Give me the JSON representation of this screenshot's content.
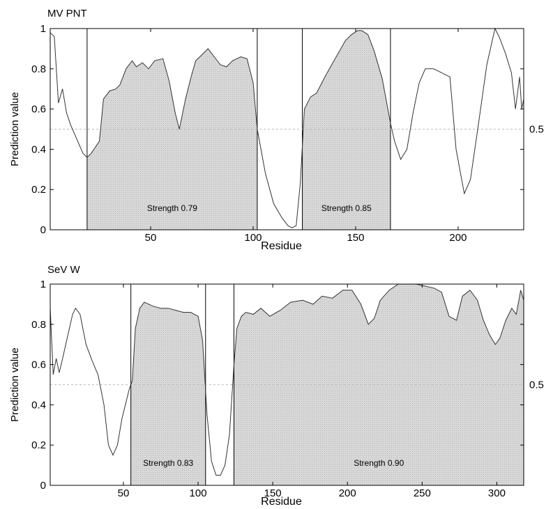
{
  "chart_data": [
    {
      "type": "line",
      "title": "MV PNT",
      "xlabel": "Residue",
      "ylabel": "Prediction value",
      "xlim": [
        1,
        232
      ],
      "ylim": [
        0,
        1
      ],
      "xticks": [
        50,
        100,
        150,
        200
      ],
      "yticks": [
        0,
        0.2,
        0.4,
        0.6,
        0.8,
        1
      ],
      "ytick_labels": [
        "0",
        "0.2",
        "0.4",
        "0.6",
        "0.8",
        "1"
      ],
      "threshold": {
        "value": 0.5,
        "label": "0.5"
      },
      "grid": false,
      "series": [
        {
          "x": [
            1,
            3,
            5,
            7,
            9,
            11,
            14,
            17,
            19,
            21,
            25,
            27,
            30,
            33,
            35,
            38,
            41,
            43,
            46,
            49,
            52,
            56,
            59,
            62,
            64,
            67,
            70,
            72,
            75,
            78,
            81,
            84,
            87,
            90,
            94,
            97,
            100,
            102,
            106,
            110,
            114,
            117,
            119,
            121,
            123,
            125,
            128,
            131,
            135,
            140,
            145,
            148,
            151,
            153,
            156,
            159,
            163,
            167,
            169,
            172,
            175,
            178,
            181,
            184,
            188,
            192,
            196,
            199,
            203,
            206,
            210,
            214,
            218,
            220,
            223,
            226,
            228,
            230,
            231,
            232
          ],
          "y": [
            0.98,
            0.96,
            0.63,
            0.7,
            0.58,
            0.52,
            0.45,
            0.38,
            0.36,
            0.38,
            0.44,
            0.65,
            0.69,
            0.7,
            0.72,
            0.8,
            0.84,
            0.81,
            0.83,
            0.8,
            0.84,
            0.85,
            0.74,
            0.58,
            0.5,
            0.65,
            0.77,
            0.84,
            0.87,
            0.9,
            0.86,
            0.82,
            0.81,
            0.84,
            0.86,
            0.85,
            0.73,
            0.5,
            0.28,
            0.13,
            0.06,
            0.02,
            0.01,
            0.02,
            0.23,
            0.6,
            0.66,
            0.68,
            0.76,
            0.85,
            0.94,
            0.97,
            0.99,
            0.99,
            0.97,
            0.89,
            0.75,
            0.53,
            0.44,
            0.35,
            0.4,
            0.58,
            0.73,
            0.8,
            0.8,
            0.78,
            0.76,
            0.4,
            0.18,
            0.25,
            0.53,
            0.82,
            1.0,
            0.96,
            0.88,
            0.78,
            0.6,
            0.76,
            0.6,
            0.65
          ]
        }
      ],
      "regions": [
        {
          "start": 19,
          "end": 102,
          "label": "Strength 0.79"
        },
        {
          "start": 124,
          "end": 167,
          "label": "Strength 0.85"
        }
      ]
    },
    {
      "type": "line",
      "title": "SeV W",
      "xlabel": "Residue",
      "ylabel": "Prediction value",
      "xlim": [
        1,
        318
      ],
      "ylim": [
        0,
        1
      ],
      "xticks": [
        50,
        100,
        150,
        200,
        250,
        300
      ],
      "yticks": [
        0,
        0.2,
        0.4,
        0.6,
        0.8,
        1
      ],
      "ytick_labels": [
        "0",
        "0.2",
        "0.4",
        "0.6",
        "0.8",
        "1"
      ],
      "threshold": {
        "value": 0.5,
        "label": "0.5"
      },
      "grid": false,
      "series": [
        {
          "x": [
            1,
            3,
            5,
            7,
            9,
            12,
            16,
            18,
            21,
            25,
            29,
            33,
            37,
            40,
            43,
            46,
            49,
            52,
            54,
            56,
            58,
            61,
            64,
            67,
            70,
            75,
            80,
            85,
            90,
            95,
            100,
            103,
            106,
            109,
            112,
            115,
            118,
            121,
            124,
            126,
            129,
            132,
            137,
            142,
            148,
            155,
            162,
            170,
            177,
            183,
            190,
            197,
            203,
            209,
            214,
            218,
            222,
            228,
            234,
            240,
            246,
            252,
            258,
            263,
            268,
            273,
            277,
            282,
            287,
            291,
            295,
            299,
            302,
            306,
            310,
            313,
            315,
            316,
            318
          ],
          "y": [
            0.88,
            0.55,
            0.63,
            0.56,
            0.62,
            0.72,
            0.85,
            0.88,
            0.85,
            0.7,
            0.62,
            0.55,
            0.4,
            0.2,
            0.15,
            0.2,
            0.33,
            0.42,
            0.48,
            0.52,
            0.78,
            0.88,
            0.91,
            0.9,
            0.89,
            0.88,
            0.88,
            0.87,
            0.86,
            0.86,
            0.84,
            0.72,
            0.35,
            0.12,
            0.05,
            0.05,
            0.1,
            0.25,
            0.6,
            0.78,
            0.84,
            0.86,
            0.85,
            0.88,
            0.84,
            0.87,
            0.91,
            0.92,
            0.9,
            0.94,
            0.93,
            0.97,
            0.97,
            0.9,
            0.8,
            0.83,
            0.92,
            0.97,
            1.0,
            1.0,
            1.0,
            0.99,
            0.98,
            0.96,
            0.84,
            0.82,
            0.94,
            0.97,
            0.92,
            0.82,
            0.75,
            0.7,
            0.73,
            0.82,
            0.88,
            0.85,
            0.93,
            0.97,
            0.92
          ]
        }
      ],
      "regions": [
        {
          "start": 55,
          "end": 105,
          "label": "Strength 0.83"
        },
        {
          "start": 124,
          "end": 318,
          "label": "Strength 0.90"
        }
      ]
    }
  ]
}
